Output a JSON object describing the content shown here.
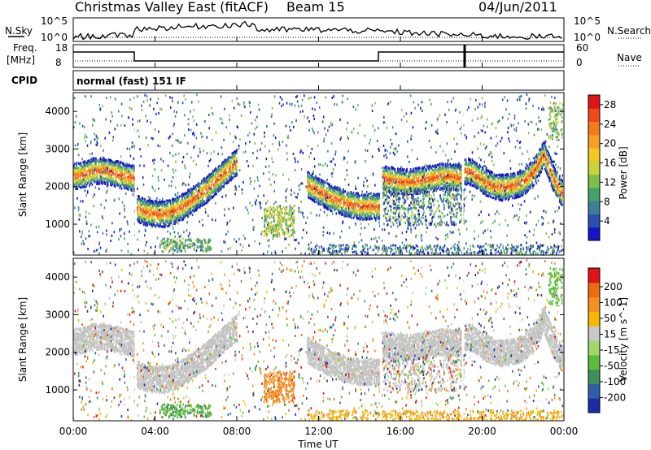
{
  "header": {
    "station": "Christmas Valley East (fitACF)",
    "beam": "Beam 15",
    "date": "04/Jun/2011"
  },
  "panels": {
    "nsky": {
      "left_label": "N.Sky",
      "right_label": "N.Search",
      "left_ticks": [
        "10^5",
        "10^0"
      ],
      "right_ticks": [
        "10^5",
        "10^0"
      ]
    },
    "freq": {
      "left_label_1": "Freq.",
      "left_label_2": "[MHz]",
      "right_label": "Nave",
      "left_ticks": [
        "18",
        "8"
      ],
      "right_ticks": [
        "60",
        "0"
      ]
    },
    "cpid": {
      "label": "CPID",
      "text": "normal (fast) 151 IF"
    }
  },
  "chart_data": [
    {
      "type": "heatmap",
      "name": "power",
      "ylabel": "Slant Range [km]",
      "xlabel": "Time UT",
      "x_ticks": [
        "00:00",
        "04:00",
        "08:00",
        "12:00",
        "16:00",
        "20:00",
        "00:00"
      ],
      "x_range_hours": [
        0,
        24
      ],
      "y_range_km": [
        180,
        4500
      ],
      "y_ticks": [
        "1000",
        "2000",
        "3000",
        "4000"
      ],
      "colorbar": {
        "label": "Power [dB]",
        "range": [
          0,
          30
        ],
        "ticks": [
          "4",
          "8",
          "12",
          "16",
          "20",
          "24",
          "28"
        ],
        "colors": [
          "#1515c8",
          "#2a4fb0",
          "#3d7f9a",
          "#43a36a",
          "#7fbe4a",
          "#c8d23c",
          "#f2c81e",
          "#f6a020",
          "#f57a1e",
          "#ef4a1a",
          "#e01414"
        ]
      },
      "ridges": [
        {
          "t": [
            0.0,
            0.5,
            1.0,
            1.5,
            2.0,
            2.5,
            3.0
          ],
          "r": [
            2300,
            2350,
            2450,
            2450,
            2380,
            2300,
            2250
          ]
        },
        {
          "t": [
            3.1,
            3.5,
            4.0,
            4.5,
            5.0,
            5.5,
            6.0,
            6.5,
            7.0,
            7.5,
            8.0
          ],
          "r": [
            1450,
            1350,
            1300,
            1300,
            1400,
            1550,
            1750,
            1950,
            2200,
            2450,
            2700
          ]
        },
        {
          "t": [
            11.4,
            12.0,
            12.5,
            13.0,
            13.5,
            14.0,
            14.5,
            15.0
          ],
          "r": [
            2100,
            1900,
            1750,
            1650,
            1550,
            1500,
            1500,
            1500
          ]
        },
        {
          "t": [
            15.1,
            15.5,
            16.0,
            16.5,
            17.0,
            17.5,
            18.0,
            18.5,
            19.0
          ],
          "r": [
            2250,
            2200,
            2150,
            2150,
            2200,
            2250,
            2300,
            2300,
            2250
          ]
        },
        {
          "t": [
            19.1,
            19.5,
            20.0,
            20.5,
            21.0,
            21.5,
            22.0,
            22.5,
            23.0,
            23.5,
            24.0
          ],
          "r": [
            2450,
            2400,
            2200,
            2050,
            2000,
            2050,
            2150,
            2400,
            2900,
            2200,
            1750
          ]
        }
      ]
    },
    {
      "type": "heatmap",
      "name": "velocity",
      "ylabel": "Slant Range [km]",
      "xlabel": "Time UT",
      "x_ticks": [
        "00:00",
        "04:00",
        "08:00",
        "12:00",
        "16:00",
        "20:00",
        "00:00"
      ],
      "x_range_hours": [
        0,
        24
      ],
      "y_range_km": [
        180,
        4500
      ],
      "y_ticks": [
        "1000",
        "2000",
        "3000",
        "4000"
      ],
      "colorbar": {
        "label": "Velocity [m s^-1]",
        "range": [
          -250,
          250
        ],
        "ticks": [
          "200",
          "100",
          "50",
          "15",
          "-15",
          "-50",
          "-100",
          "-200"
        ],
        "colors": [
          "#1c2ca8",
          "#2f5fa8",
          "#3f8f5a",
          "#5cbf3c",
          "#a2d86a",
          "#c8c8c8",
          "#f5b800",
          "#f59020",
          "#ef6a10",
          "#e01414"
        ]
      },
      "ground_scatter_color": "#c3c3c3"
    }
  ]
}
